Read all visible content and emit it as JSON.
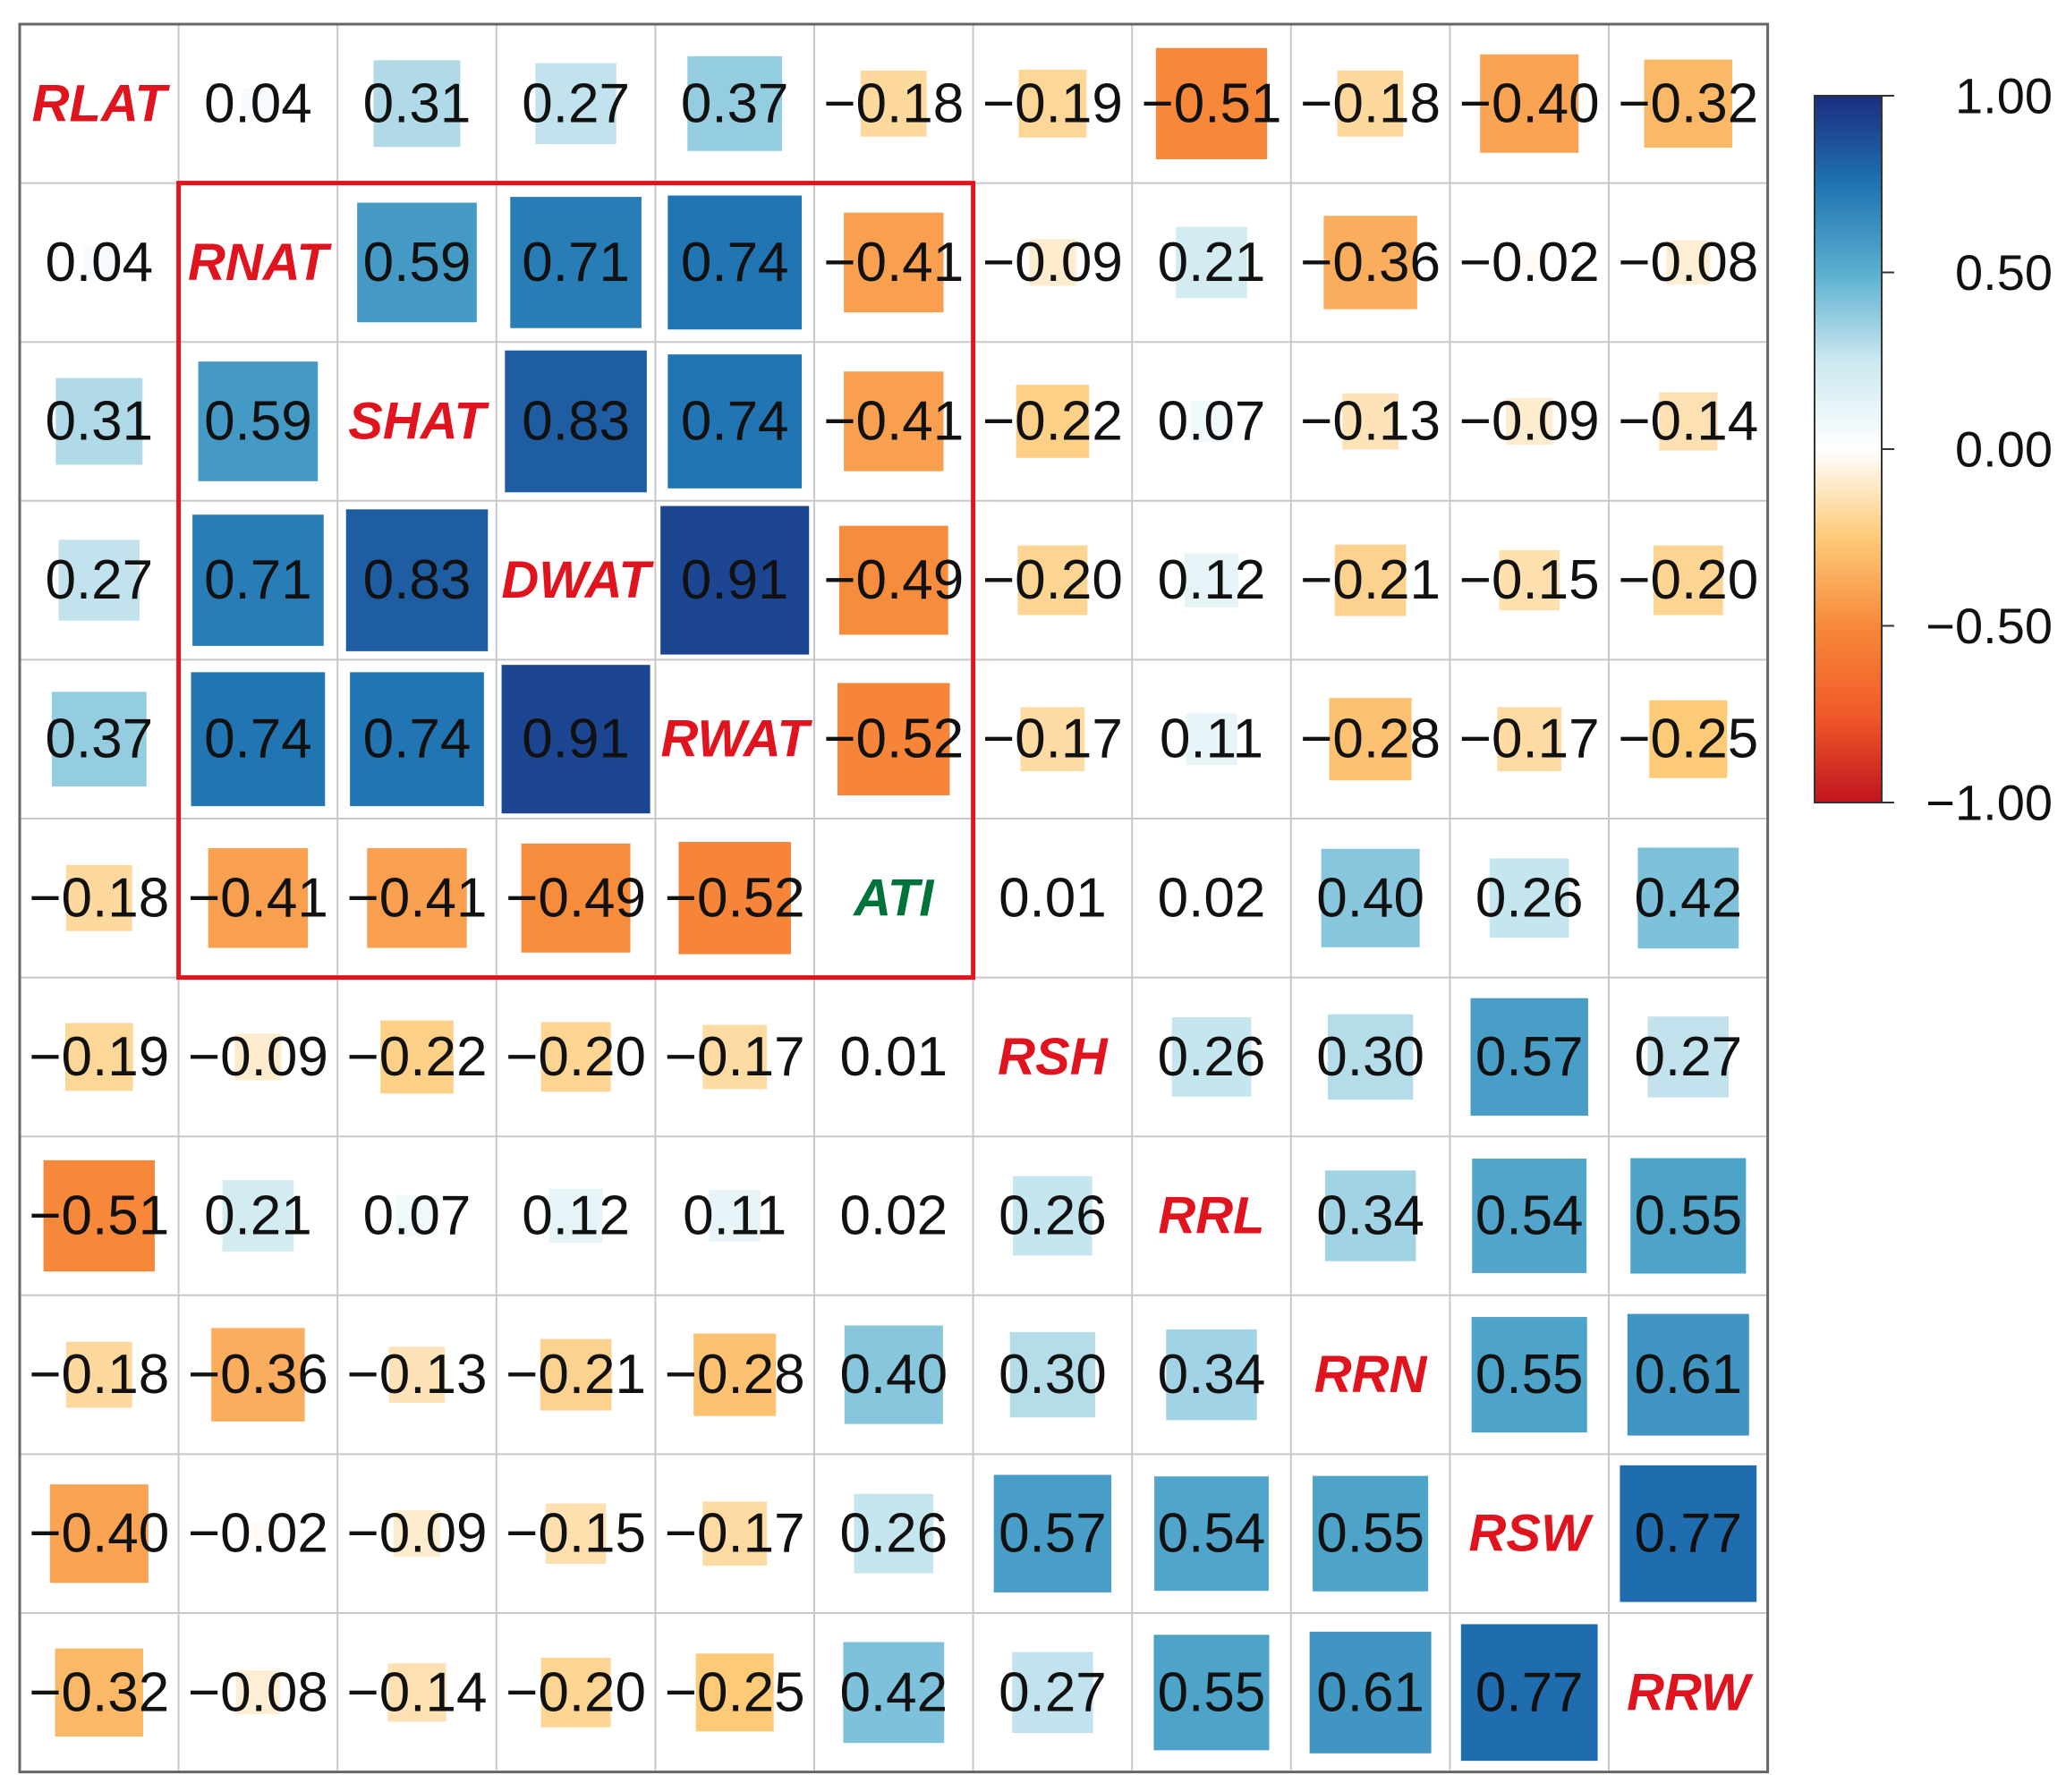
{
  "chart_data": {
    "type": "heatmap",
    "subtype": "correlation-matrix",
    "variables": [
      "RLAT",
      "RNAT",
      "SHAT",
      "DWAT",
      "RWAT",
      "ATI",
      "RSH",
      "RRL",
      "RRN",
      "RSW",
      "RRW"
    ],
    "matrix": [
      [
        1,
        0.04,
        0.31,
        0.27,
        0.37,
        -0.18,
        -0.19,
        -0.51,
        -0.18,
        -0.4,
        -0.32
      ],
      [
        0.04,
        1,
        0.59,
        0.71,
        0.74,
        -0.41,
        -0.09,
        0.21,
        -0.36,
        -0.02,
        -0.08
      ],
      [
        0.31,
        0.59,
        1,
        0.83,
        0.74,
        -0.41,
        -0.22,
        0.07,
        -0.13,
        -0.09,
        -0.14
      ],
      [
        0.27,
        0.71,
        0.83,
        1,
        0.91,
        -0.49,
        -0.2,
        0.12,
        -0.21,
        -0.15,
        -0.2
      ],
      [
        0.37,
        0.74,
        0.74,
        0.91,
        1,
        -0.52,
        -0.17,
        0.11,
        -0.28,
        -0.17,
        -0.25
      ],
      [
        -0.18,
        -0.41,
        -0.41,
        -0.49,
        -0.52,
        1,
        0.01,
        0.02,
        0.4,
        0.26,
        0.42
      ],
      [
        -0.19,
        -0.09,
        -0.22,
        -0.2,
        -0.17,
        0.01,
        1,
        0.26,
        0.3,
        0.57,
        0.27
      ],
      [
        -0.51,
        0.21,
        0.07,
        0.12,
        0.11,
        0.02,
        0.26,
        1,
        0.34,
        0.54,
        0.55
      ],
      [
        -0.18,
        -0.36,
        -0.13,
        -0.21,
        -0.28,
        0.4,
        0.3,
        0.34,
        1,
        0.55,
        0.61
      ],
      [
        -0.4,
        -0.02,
        -0.09,
        -0.15,
        -0.17,
        0.26,
        0.57,
        0.54,
        0.55,
        1,
        0.77
      ],
      [
        -0.32,
        -0.08,
        -0.14,
        -0.2,
        -0.25,
        0.42,
        0.27,
        0.55,
        0.61,
        0.77,
        1
      ]
    ],
    "value_format": "2 decimals",
    "diagonal": "variable names",
    "highlight_group": [
      "RNAT",
      "SHAT",
      "DWAT",
      "RWAT",
      "ATI"
    ],
    "colorbar": {
      "range": [
        -1.0,
        1.0
      ],
      "ticks": [
        "1.00",
        "0.50",
        "0.00",
        "−0.50",
        "−1.00"
      ],
      "tick_values": [
        1.0,
        0.5,
        0.0,
        -0.5,
        -1.0
      ],
      "stops": [
        {
          "value": -1.0,
          "color": "#c0141e"
        },
        {
          "value": -0.75,
          "color": "#f15a29"
        },
        {
          "value": -0.5,
          "color": "#f7893a"
        },
        {
          "value": -0.25,
          "color": "#fdca78"
        },
        {
          "value": 0.0,
          "color": "#ffffff"
        },
        {
          "value": 0.25,
          "color": "#cbe8f0"
        },
        {
          "value": 0.5,
          "color": "#5aafcf"
        },
        {
          "value": 0.75,
          "color": "#1f73b2"
        },
        {
          "value": 1.0,
          "color": "#1b2d7e"
        }
      ]
    },
    "legend_position": "right"
  },
  "colors": {
    "label_default": "#e0141e",
    "label_highlight": "#00733a",
    "highlight_box": "#e0141e"
  },
  "highlight_label": "ATI"
}
